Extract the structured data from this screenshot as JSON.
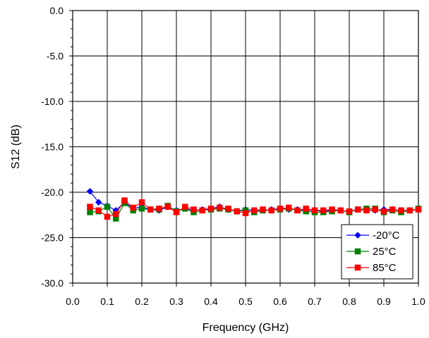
{
  "chart_data": {
    "type": "line",
    "title": "",
    "xlabel": "Frequency (GHz)",
    "ylabel": "S12 (dB)",
    "xlim": [
      0.0,
      1.0
    ],
    "ylim": [
      -30.0,
      0.0
    ],
    "x_ticks": [
      "0.0",
      "0.1",
      "0.2",
      "0.3",
      "0.4",
      "0.5",
      "0.6",
      "0.7",
      "0.8",
      "0.9",
      "1.0"
    ],
    "y_ticks": [
      "0.0",
      "-5.0",
      "-10.0",
      "-15.0",
      "-20.0",
      "-25.0",
      "-30.0"
    ],
    "grid": true,
    "legend_position": "bottom-right",
    "series": [
      {
        "name": "-20°C",
        "color": "#0000ff",
        "marker": "diamond",
        "x": [
          0.05,
          0.075,
          0.1,
          0.125,
          0.15,
          0.175,
          0.2,
          0.225,
          0.25,
          0.275,
          0.3,
          0.325,
          0.35,
          0.375,
          0.4,
          0.425,
          0.45,
          0.475,
          0.5,
          0.525,
          0.55,
          0.575,
          0.6,
          0.625,
          0.65,
          0.675,
          0.7,
          0.725,
          0.75,
          0.775,
          0.8,
          0.825,
          0.85,
          0.875,
          0.9,
          0.925,
          0.95,
          0.975,
          1.0
        ],
        "y": [
          -19.9,
          -21.1,
          -21.5,
          -22.0,
          -21.1,
          -21.8,
          -21.6,
          -21.9,
          -22.0,
          -21.6,
          -22.0,
          -21.8,
          -22.0,
          -21.9,
          -21.8,
          -21.6,
          -21.9,
          -22.1,
          -21.9,
          -22.0,
          -22.0,
          -21.9,
          -21.8,
          -21.9,
          -21.9,
          -22.0,
          -22.0,
          -22.1,
          -22.0,
          -22.0,
          -22.1,
          -21.9,
          -22.0,
          -22.0,
          -21.9,
          -21.9,
          -22.0,
          -22.0,
          -21.9
        ]
      },
      {
        "name": "25°C",
        "color": "#008000",
        "marker": "square",
        "x": [
          0.05,
          0.075,
          0.1,
          0.125,
          0.15,
          0.175,
          0.2,
          0.225,
          0.25,
          0.275,
          0.3,
          0.325,
          0.35,
          0.375,
          0.4,
          0.425,
          0.45,
          0.475,
          0.5,
          0.525,
          0.55,
          0.575,
          0.6,
          0.625,
          0.65,
          0.675,
          0.7,
          0.725,
          0.75,
          0.775,
          0.8,
          0.825,
          0.85,
          0.875,
          0.9,
          0.925,
          0.95,
          0.975,
          1.0
        ],
        "y": [
          -22.2,
          -22.1,
          -21.6,
          -22.9,
          -21.2,
          -22.0,
          -21.8,
          -21.9,
          -21.9,
          -21.5,
          -22.1,
          -21.8,
          -22.2,
          -22.0,
          -21.9,
          -21.8,
          -21.9,
          -22.1,
          -22.0,
          -22.2,
          -22.0,
          -22.0,
          -21.9,
          -21.8,
          -22.0,
          -22.1,
          -22.2,
          -22.2,
          -22.1,
          -22.0,
          -22.2,
          -21.9,
          -21.8,
          -21.8,
          -22.2,
          -22.0,
          -22.2,
          -22.0,
          -21.8
        ]
      },
      {
        "name": "85°C",
        "color": "#ff0000",
        "marker": "square",
        "x": [
          0.05,
          0.075,
          0.1,
          0.125,
          0.15,
          0.175,
          0.2,
          0.225,
          0.25,
          0.275,
          0.3,
          0.325,
          0.35,
          0.375,
          0.4,
          0.425,
          0.45,
          0.475,
          0.5,
          0.525,
          0.55,
          0.575,
          0.6,
          0.625,
          0.65,
          0.675,
          0.7,
          0.725,
          0.75,
          0.775,
          0.8,
          0.825,
          0.85,
          0.875,
          0.9,
          0.925,
          0.95,
          0.975,
          1.0
        ],
        "y": [
          -21.6,
          -22.0,
          -22.7,
          -22.4,
          -20.9,
          -21.7,
          -21.1,
          -21.9,
          -21.8,
          -21.6,
          -22.2,
          -21.6,
          -21.9,
          -22.0,
          -21.8,
          -21.7,
          -21.8,
          -22.1,
          -22.3,
          -22.0,
          -21.9,
          -22.0,
          -21.8,
          -21.7,
          -22.0,
          -21.8,
          -22.0,
          -22.0,
          -21.9,
          -22.0,
          -22.1,
          -21.9,
          -22.0,
          -21.9,
          -22.1,
          -21.9,
          -22.0,
          -22.0,
          -21.9
        ]
      }
    ]
  }
}
